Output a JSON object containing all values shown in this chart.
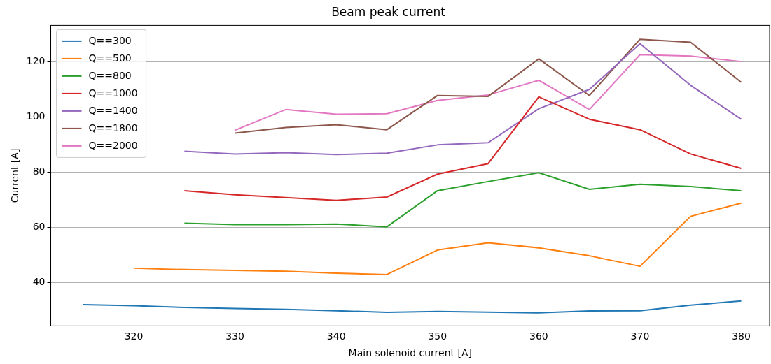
{
  "chart_data": {
    "type": "line",
    "title": "Beam peak current",
    "xlabel": "Main solenoid current [A]",
    "ylabel": "Current [A]",
    "xlim": [
      311.8,
      382.8
    ],
    "xticks": [
      320,
      330,
      340,
      350,
      360,
      370,
      380
    ],
    "ylim": [
      24.2,
      133.1
    ],
    "yticks": [
      40,
      60,
      80,
      100,
      120
    ],
    "grid": "y",
    "legend": "top left",
    "marker": "none",
    "line_style": "solid",
    "series": [
      {
        "name": "Q==300",
        "color": "#1f77b4",
        "x": [
          315,
          320,
          325,
          330,
          335,
          340,
          345,
          350,
          355,
          360,
          365,
          370,
          375,
          380
        ],
        "values": [
          31.9,
          31.5,
          30.9,
          30.5,
          30.2,
          29.7,
          29.1,
          29.4,
          29.2,
          28.9,
          29.6,
          29.7,
          31.7,
          33.2
        ]
      },
      {
        "name": "Q==500",
        "color": "#ff7f0e",
        "x": [
          320,
          325,
          330,
          335,
          340,
          345,
          350,
          355,
          360,
          365,
          370,
          375,
          380
        ],
        "values": [
          45.1,
          44.6,
          44.3,
          44.0,
          43.3,
          42.8,
          51.7,
          54.3,
          52.5,
          49.6,
          45.8,
          63.9,
          68.7
        ]
      },
      {
        "name": "Q==800",
        "color": "#2ca02c",
        "x": [
          325,
          330,
          335,
          340,
          345,
          350,
          355,
          360,
          365,
          370,
          375,
          380
        ],
        "values": [
          61.4,
          60.9,
          60.9,
          61.1,
          60.1,
          73.2,
          76.5,
          79.7,
          73.7,
          75.5,
          74.7,
          73.2
        ]
      },
      {
        "name": "Q==1000",
        "color": "#d62728",
        "x": [
          325,
          330,
          335,
          340,
          345,
          350,
          355,
          360,
          365,
          370,
          375,
          380
        ],
        "values": [
          73.2,
          71.7,
          70.7,
          69.7,
          70.9,
          79.2,
          83.0,
          107.2,
          99.1,
          95.3,
          86.5,
          81.3
        ]
      },
      {
        "name": "Q==1400",
        "color": "#9467bd",
        "x": [
          325,
          330,
          335,
          340,
          345,
          350,
          355,
          360,
          365,
          370,
          375,
          380
        ],
        "values": [
          87.5,
          86.5,
          87.0,
          86.3,
          86.8,
          89.8,
          90.6,
          102.9,
          109.9,
          126.5,
          111.4,
          99.1
        ]
      },
      {
        "name": "Q==1800",
        "color": "#8c564b",
        "x": [
          330,
          335,
          340,
          345,
          350,
          355,
          360,
          365,
          370,
          375,
          380
        ],
        "values": [
          94.1,
          96.1,
          97.1,
          95.3,
          107.7,
          107.4,
          121.0,
          107.7,
          128.1,
          127.0,
          112.5
        ]
      },
      {
        "name": "Q==2000",
        "color": "#e377c2",
        "x": [
          330,
          335,
          340,
          345,
          350,
          355,
          360,
          365,
          370,
          375,
          380
        ],
        "values": [
          95.1,
          102.6,
          100.9,
          101.1,
          105.9,
          107.9,
          113.2,
          102.6,
          122.5,
          122.0,
          120.0
        ]
      }
    ]
  }
}
